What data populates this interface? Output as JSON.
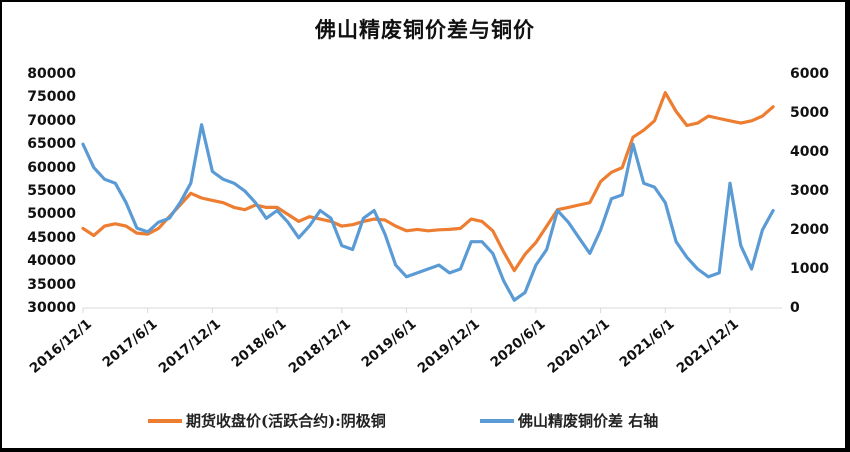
{
  "chart_data": {
    "type": "line",
    "title": "佛山精废铜价差与铜价",
    "xlabel": "",
    "ylabel_left": "",
    "ylabel_right": "",
    "left_axis": {
      "ticks": [
        "80000",
        "75000",
        "70000",
        "65000",
        "60000",
        "55000",
        "50000",
        "45000",
        "40000",
        "35000",
        "30000"
      ],
      "ylim": [
        30000,
        80000
      ]
    },
    "right_axis": {
      "ticks": [
        "6000",
        "5000",
        "4000",
        "3000",
        "2000",
        "1000",
        "0"
      ],
      "ylim": [
        0,
        6000
      ]
    },
    "x_ticks": [
      "2016/12/1",
      "2017/6/1",
      "2017/12/1",
      "2018/6/1",
      "2018/12/1",
      "2019/6/1",
      "2019/12/1",
      "2020/6/1",
      "2020/12/1",
      "2021/6/1",
      "2021/12/1"
    ],
    "grid": false,
    "legend_position": "bottom",
    "x": [
      "2016/12",
      "2017/1",
      "2017/2",
      "2017/3",
      "2017/4",
      "2017/5",
      "2017/6",
      "2017/7",
      "2017/8",
      "2017/9",
      "2017/10",
      "2017/11",
      "2017/12",
      "2018/1",
      "2018/2",
      "2018/3",
      "2018/4",
      "2018/5",
      "2018/6",
      "2018/7",
      "2018/8",
      "2018/9",
      "2018/10",
      "2018/11",
      "2018/12",
      "2019/1",
      "2019/2",
      "2019/3",
      "2019/4",
      "2019/5",
      "2019/6",
      "2019/7",
      "2019/8",
      "2019/9",
      "2019/10",
      "2019/11",
      "2019/12",
      "2020/1",
      "2020/2",
      "2020/3",
      "2020/4",
      "2020/5",
      "2020/6",
      "2020/7",
      "2020/8",
      "2020/9",
      "2020/10",
      "2020/11",
      "2020/12",
      "2021/1",
      "2021/2",
      "2021/3",
      "2021/4",
      "2021/5",
      "2021/6",
      "2021/7",
      "2021/8",
      "2021/9",
      "2021/10",
      "2021/11",
      "2021/12",
      "2022/1",
      "2022/2",
      "2022/3",
      "2022/4"
    ],
    "series": [
      {
        "name": "期货收盘价(活跃合约):阴极铜",
        "axis": "left",
        "color": "#ED7D31",
        "values": [
          47000,
          45500,
          47500,
          48000,
          47500,
          46000,
          45800,
          47000,
          49500,
          52000,
          54500,
          53500,
          53000,
          52500,
          51500,
          51000,
          52000,
          51500,
          51500,
          50000,
          48500,
          49500,
          49000,
          48500,
          47500,
          47800,
          48500,
          49000,
          48800,
          47500,
          46500,
          46800,
          46500,
          46700,
          46800,
          47000,
          49000,
          48500,
          46500,
          42000,
          38000,
          41500,
          44000,
          47500,
          51000,
          51500,
          52000,
          52500,
          57000,
          59000,
          60000,
          66500,
          68000,
          70000,
          76000,
          72000,
          69000,
          69500,
          71000,
          70500,
          70000,
          69500,
          70000,
          71000,
          73000
        ]
      },
      {
        "name": "佛山精废铜价差 右轴",
        "axis": "right",
        "color": "#5B9BD5",
        "values": [
          4200,
          3600,
          3300,
          3200,
          2700,
          2050,
          1950,
          2200,
          2300,
          2700,
          3200,
          4700,
          3500,
          3300,
          3200,
          3000,
          2700,
          2300,
          2500,
          2200,
          1800,
          2100,
          2500,
          2300,
          1600,
          1500,
          2300,
          2500,
          1900,
          1100,
          800,
          900,
          1000,
          1100,
          900,
          1000,
          1700,
          1700,
          1400,
          700,
          200,
          400,
          1100,
          1500,
          2500,
          2200,
          1800,
          1400,
          2000,
          2800,
          2900,
          4200,
          3200,
          3100,
          2700,
          1700,
          1300,
          1000,
          800,
          900,
          3200,
          1600,
          1000,
          2000,
          2500
        ]
      }
    ]
  },
  "legend": {
    "items": [
      {
        "label": "期货收盘价(活跃合约):阴极铜",
        "color": "#ED7D31"
      },
      {
        "label": "佛山精废铜价差 右轴",
        "color": "#5B9BD5"
      }
    ]
  }
}
